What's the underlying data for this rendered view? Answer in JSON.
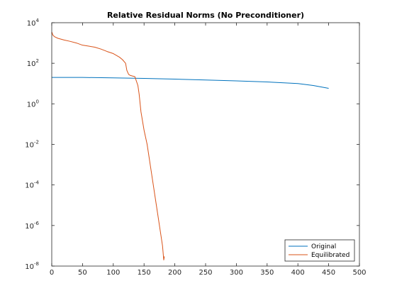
{
  "chart_data": {
    "type": "line",
    "title": "Relative Residual Norms (No Preconditioner)",
    "xlabel": "",
    "ylabel": "",
    "xlim": [
      0,
      500
    ],
    "ylim": [
      1e-08,
      10000.0
    ],
    "yscale": "log",
    "grid": false,
    "legend_position": "bottom-right",
    "xticks": [
      0,
      50,
      100,
      150,
      200,
      250,
      300,
      350,
      400,
      450,
      500
    ],
    "yticks": [
      {
        "value": 1e-08,
        "base": "10",
        "exp": "-8"
      },
      {
        "value": 1e-06,
        "base": "10",
        "exp": "-6"
      },
      {
        "value": 0.0001,
        "base": "10",
        "exp": "-4"
      },
      {
        "value": 0.01,
        "base": "10",
        "exp": "-2"
      },
      {
        "value": 1,
        "base": "10",
        "exp": "0"
      },
      {
        "value": 100,
        "base": "10",
        "exp": "2"
      },
      {
        "value": 10000,
        "base": "10",
        "exp": "4"
      }
    ],
    "series": [
      {
        "name": "Original",
        "color": "#0072bd",
        "x": [
          0,
          50,
          100,
          150,
          200,
          250,
          300,
          350,
          400,
          425,
          450
        ],
        "y": [
          20,
          20,
          19,
          18,
          16.5,
          15,
          13.5,
          12,
          10,
          8,
          5.8
        ]
      },
      {
        "name": "Equilibrated",
        "color": "#d95319",
        "x": [
          0,
          2,
          5,
          10,
          20,
          30,
          40,
          50,
          60,
          70,
          80,
          90,
          100,
          110,
          115,
          120,
          122,
          125,
          128,
          130,
          135,
          140,
          142,
          145,
          150,
          155,
          160,
          165,
          170,
          175,
          180,
          182,
          183
        ],
        "y": [
          3500,
          2400,
          2000,
          1700,
          1400,
          1200,
          1000,
          780,
          700,
          620,
          500,
          380,
          300,
          200,
          150,
          100,
          45,
          28,
          25,
          24,
          22,
          8,
          3,
          0.4,
          0.05,
          0.01,
          0.001,
          0.0001,
          1e-05,
          1e-06,
          1e-07,
          2e-08,
          3e-08
        ]
      }
    ]
  }
}
